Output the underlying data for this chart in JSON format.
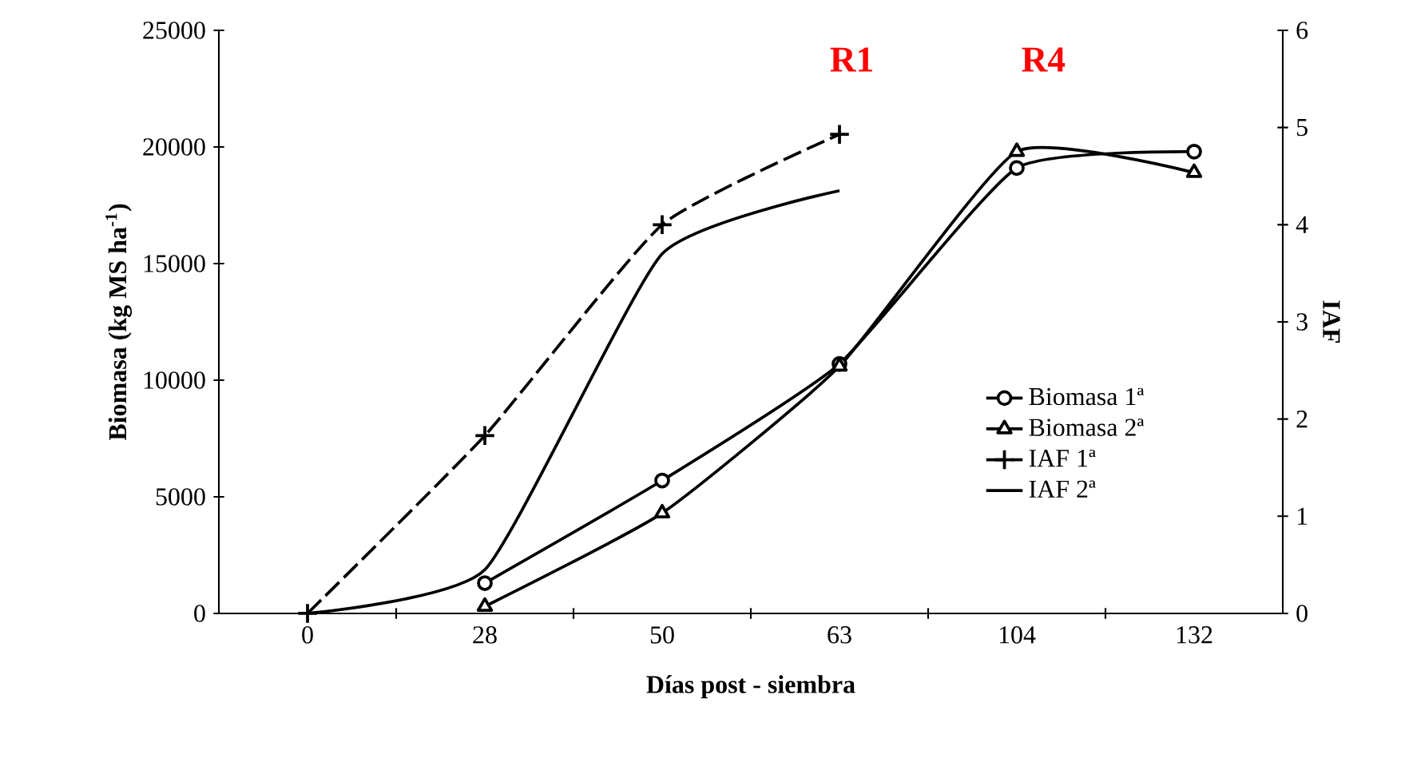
{
  "chart_data": {
    "type": "line",
    "xlabel": "Días post - siembra",
    "ylabel": "Biomasa (kg MS ha$^{-1}$)",
    "y2label": "IAF",
    "categories": [
      "0",
      "28",
      "50",
      "63",
      "104",
      "132"
    ],
    "series": [
      {
        "name": "Biomasa 1ª",
        "color": "#000000",
        "marker": "circle",
        "line_style": "solid",
        "values": [
          null,
          1300,
          5700,
          10700,
          19100,
          19800
        ]
      },
      {
        "name": "Biomasa 2ª",
        "color": "#000000",
        "marker": "triangle",
        "line_style": "solid",
        "values": [
          null,
          300,
          4300,
          10600,
          19800,
          18900
        ]
      },
      {
        "name": "IAF 1ª",
        "color": "#000000",
        "marker": "cross",
        "line_style": "dashed",
        "axis": "y2",
        "values": [
          0,
          1.83,
          4.0,
          4.93,
          null,
          null
        ]
      },
      {
        "name": "IAF 2ª",
        "color": "#000000",
        "marker": "none",
        "line_style": "solid",
        "axis": "y2",
        "values": [
          0,
          0.45,
          3.7,
          4.35,
          null,
          null
        ]
      }
    ],
    "ylim": [
      0,
      25000
    ],
    "yticks": [
      0,
      5000,
      10000,
      15000,
      20000,
      25000
    ],
    "y2lim": [
      0,
      6
    ],
    "y2ticks": [
      0,
      1,
      2,
      3,
      4,
      5,
      6
    ],
    "legend": "right",
    "grid": false,
    "annotations": [
      "R1",
      "R4"
    ]
  }
}
